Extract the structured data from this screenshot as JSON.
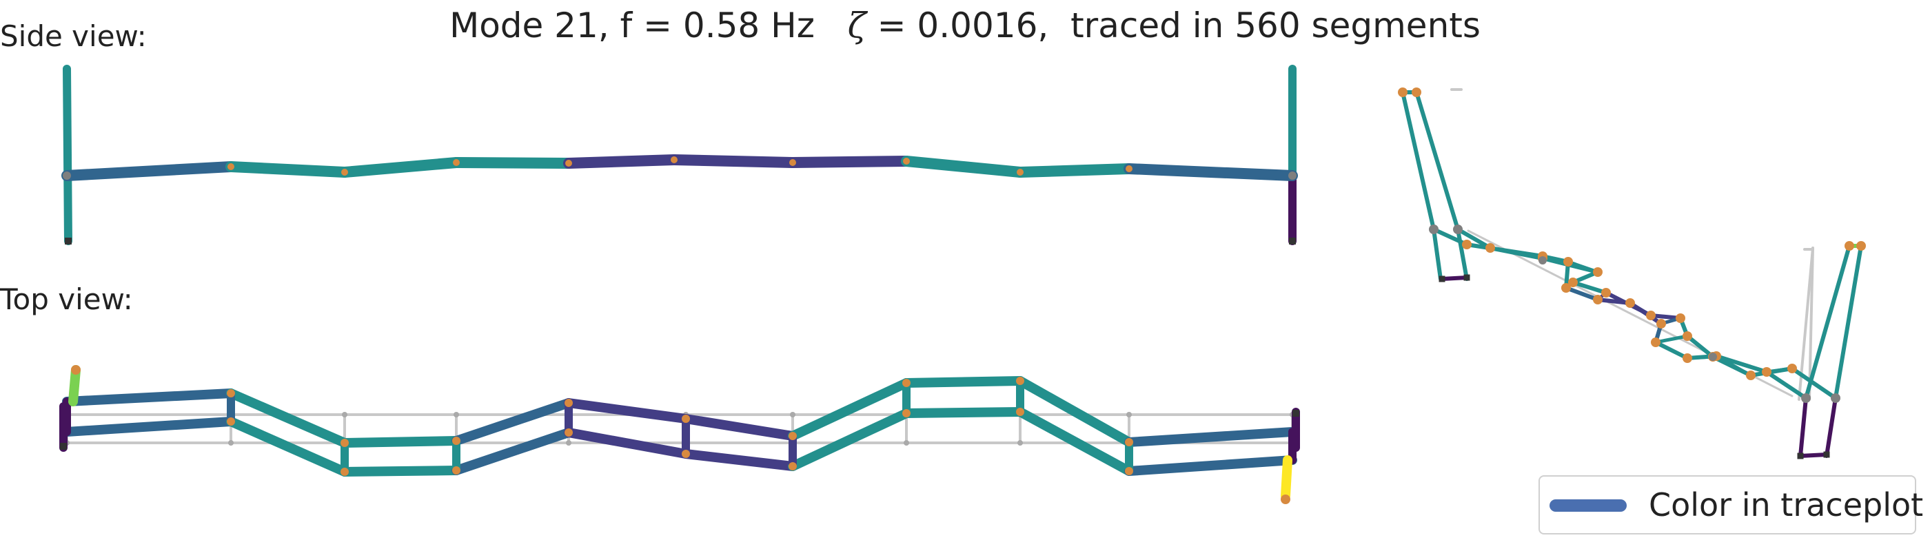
{
  "title": {
    "prefix": "Mode 21, f = 0.58 Hz",
    "zeta_symbol": "ζ",
    "suffix": " = 0.0016,  traced in 560 segments"
  },
  "views": {
    "side_label": "Side view:",
    "top_label": "Top view:"
  },
  "legend": {
    "label": "Color in traceplot",
    "swatch_color": "#4a6fb0"
  },
  "colors": {
    "teal": "#23908d",
    "steel_blue": "#31658e",
    "indigo": "#433e85",
    "dark_purple": "#45135c",
    "light_green": "#7ad151",
    "yellow": "#fde725",
    "node_orange": "#d78a3f",
    "node_gray": "#7f7f7f",
    "undeformed_gray": "#c8c8c8"
  }
}
